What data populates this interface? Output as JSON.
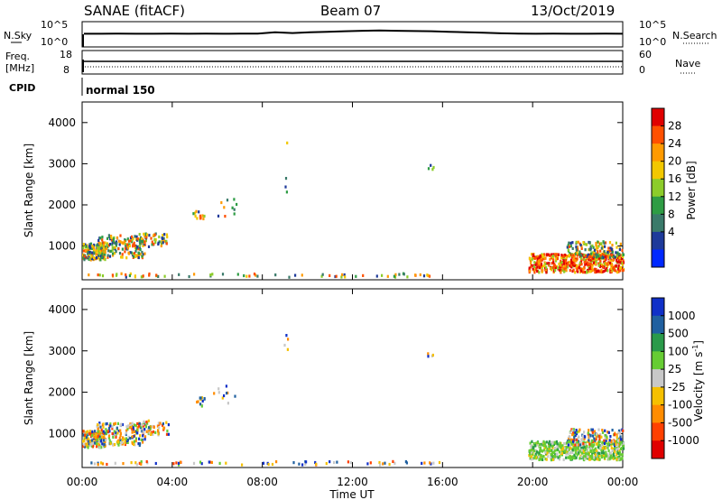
{
  "header": {
    "station": "SANAE (fitACF)",
    "beam": "Beam 07",
    "date": "13/Oct/2019"
  },
  "chart_data": [
    {
      "type": "line",
      "panel": "noise",
      "left_label": "N.Sky",
      "right_label": "N.Search",
      "left_ticks": [
        "10^5",
        "10^0"
      ],
      "right_ticks": [
        "10^5",
        "10^0"
      ],
      "series": [
        {
          "values_rel": [
            0.52,
            0.52,
            0.53,
            0.52,
            0.52,
            0.53,
            0.52,
            0.53,
            0.52,
            0.53,
            0.53,
            0.58,
            0.55,
            0.58,
            0.6,
            0.62,
            0.64,
            0.65,
            0.64,
            0.63,
            0.62,
            0.6,
            0.58,
            0.56,
            0.54,
            0.53,
            0.52,
            0.53,
            0.52,
            0.52,
            0.53,
            0.52
          ]
        }
      ]
    },
    {
      "type": "line",
      "panel": "frequency",
      "left_label_lines": [
        "Freq.",
        "[MHz]"
      ],
      "right_label": "Nave",
      "left_ticks": [
        "18",
        "8"
      ],
      "right_ticks": [
        "60",
        "0"
      ],
      "cpid_label": "CPID",
      "cpid_text": "normal 150"
    },
    {
      "type": "heatmap",
      "panel": "power",
      "ylabel": "Slant Range [km]",
      "yticks": [
        "4000",
        "3000",
        "2000",
        "1000"
      ],
      "ytick_values": [
        4000,
        3000,
        2000,
        1000
      ],
      "ylim": [
        180,
        4500
      ],
      "colorbar_label": "Power [dB]",
      "colorbar_ticks": [
        "28",
        "24",
        "20",
        "16",
        "12",
        "8",
        "4"
      ],
      "colorbar_colors": [
        "#e00000",
        "#ff5000",
        "#ff9a00",
        "#f2c800",
        "#8ccc2a",
        "#2e9c44",
        "#3a7a6a",
        "#1e3a9a",
        "#0028ff"
      ]
    },
    {
      "type": "heatmap",
      "panel": "velocity",
      "ylabel": "Slant Range [km]",
      "yticks": [
        "4000",
        "3000",
        "2000",
        "1000"
      ],
      "ytick_values": [
        4000,
        3000,
        2000,
        1000
      ],
      "ylim": [
        180,
        4500
      ],
      "xlabel": "Time UT",
      "xticks": [
        "00:00",
        "04:00",
        "08:00",
        "12:00",
        "16:00",
        "20:00",
        "00:00"
      ],
      "colorbar_label": "Velocity [m s",
      "colorbar_label_sup": "-1",
      "colorbar_label_end": "]",
      "colorbar_ticks": [
        "1000",
        "500",
        "100",
        "25",
        "-25",
        "-100",
        "-500",
        "-1000"
      ],
      "colorbar_colors": [
        "#1030c8",
        "#2060a0",
        "#2a9a4a",
        "#66cc33",
        "#c8c8c8",
        "#f5c000",
        "#ff8c00",
        "#ff4000",
        "#e00000"
      ]
    }
  ]
}
